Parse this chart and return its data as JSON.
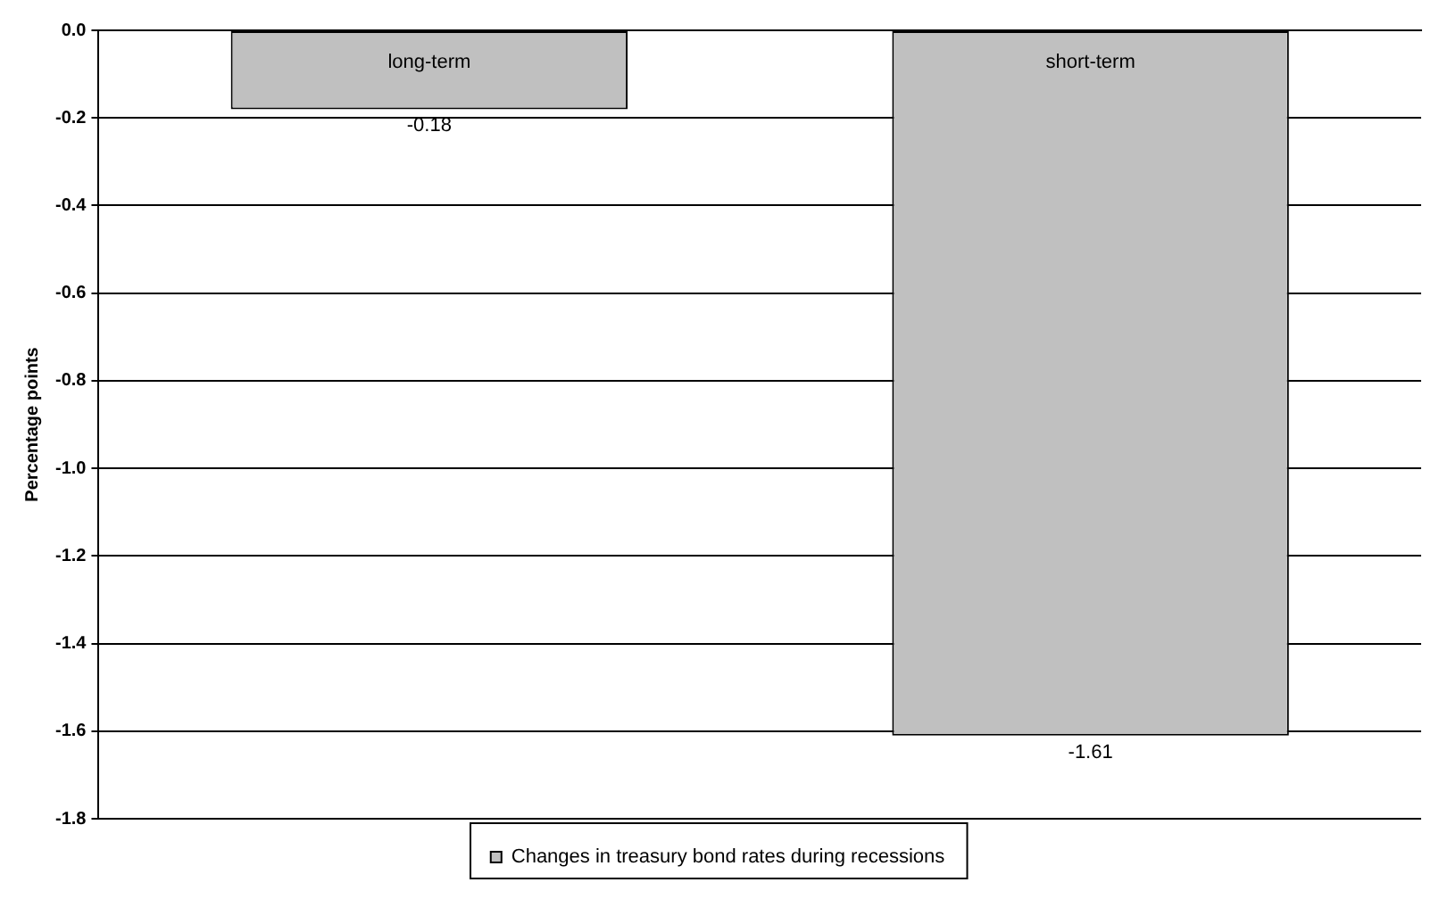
{
  "chart_data": {
    "type": "bar",
    "ylabel": "Percentage points",
    "categories": [
      "long-term",
      "short-term"
    ],
    "series": [
      {
        "name": "Changes in treasury bond rates during recessions",
        "color": "#c0c0c0",
        "values": [
          -0.18,
          -1.61
        ]
      }
    ],
    "ylim": [
      -1.8,
      0
    ],
    "yticks": [
      {
        "value": 0,
        "label": "0.0"
      },
      -0.2,
      -0.4,
      -0.6,
      -0.8,
      {
        "value": -1,
        "label": "-1.0"
      },
      -1.2,
      -1.4,
      -1.6,
      -1.8
    ],
    "grid": "y",
    "legend": "bottom",
    "data_labels": true
  }
}
